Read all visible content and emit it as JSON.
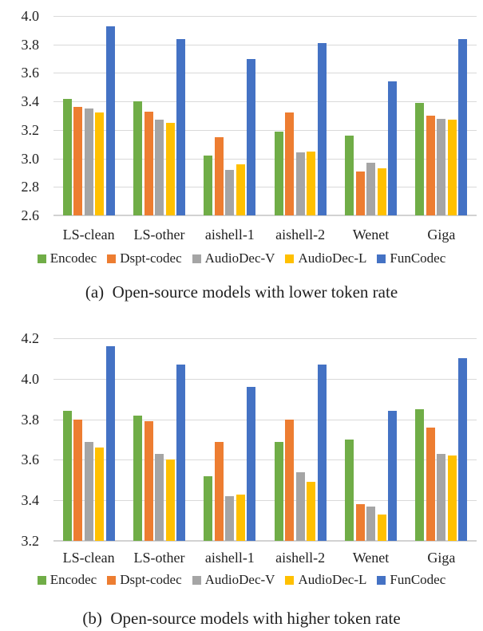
{
  "figure": {
    "caption_a": "(a)  Open-source models with lower token rate",
    "caption_b": "(b)  Open-source models with higher token rate"
  },
  "colors": {
    "encodec_green": "#70AD47",
    "dspt_orange": "#ED7D31",
    "audiodec_v_gray": "#A5A5A5",
    "audiodec_l_yellow": "#FFC000",
    "funcodec_blue": "#4472C4",
    "gridline": "#d9d9d9"
  },
  "chart_data": [
    {
      "type": "bar",
      "title": "",
      "caption": "(a)  Open-source models with lower token rate",
      "categories": [
        "LS-clean",
        "LS-other",
        "aishell-1",
        "aishell-2",
        "Wenet",
        "Giga"
      ],
      "series": [
        {
          "name": "Encodec",
          "color": "#70AD47",
          "values": [
            3.42,
            3.4,
            3.02,
            3.19,
            3.16,
            3.39
          ]
        },
        {
          "name": "Dspt-codec",
          "color": "#ED7D31",
          "values": [
            3.36,
            3.33,
            3.15,
            3.32,
            2.91,
            3.3
          ]
        },
        {
          "name": "AudioDec-V",
          "color": "#A5A5A5",
          "values": [
            3.35,
            3.27,
            2.92,
            3.04,
            2.97,
            3.28
          ]
        },
        {
          "name": "AudioDec-L",
          "color": "#FFC000",
          "values": [
            3.32,
            3.25,
            2.96,
            3.05,
            2.93,
            3.27
          ]
        },
        {
          "name": "FunCodec",
          "color": "#4472C4",
          "values": [
            3.93,
            3.84,
            3.7,
            3.81,
            3.54,
            3.84
          ]
        }
      ],
      "xlabel": "",
      "ylabel": "",
      "ylim": [
        2.6,
        4.0
      ],
      "ytick_step": 0.2,
      "yticks": [
        "4.0",
        "3.8",
        "3.6",
        "3.4",
        "3.2",
        "3.0",
        "2.8",
        "2.6"
      ],
      "grid": true,
      "legend_position": "bottom"
    },
    {
      "type": "bar",
      "title": "",
      "caption": "(b)  Open-source models with higher token rate",
      "categories": [
        "LS-clean",
        "LS-other",
        "aishell-1",
        "aishell-2",
        "Wenet",
        "Giga"
      ],
      "series": [
        {
          "name": "Encodec",
          "color": "#70AD47",
          "values": [
            3.84,
            3.82,
            3.52,
            3.69,
            3.7,
            3.85
          ]
        },
        {
          "name": "Dspt-codec",
          "color": "#ED7D31",
          "values": [
            3.8,
            3.79,
            3.69,
            3.8,
            3.38,
            3.76
          ]
        },
        {
          "name": "AudioDec-V",
          "color": "#A5A5A5",
          "values": [
            3.69,
            3.63,
            3.42,
            3.54,
            3.37,
            3.63
          ]
        },
        {
          "name": "AudioDec-L",
          "color": "#FFC000",
          "values": [
            3.66,
            3.6,
            3.43,
            3.49,
            3.33,
            3.62
          ]
        },
        {
          "name": "FunCodec",
          "color": "#4472C4",
          "values": [
            4.16,
            4.07,
            3.96,
            4.07,
            3.84,
            4.1
          ]
        }
      ],
      "xlabel": "",
      "ylabel": "",
      "ylim": [
        3.2,
        4.2
      ],
      "ytick_step": 0.2,
      "yticks": [
        "4.2",
        "4.0",
        "3.8",
        "3.6",
        "3.4",
        "3.2"
      ],
      "grid": true,
      "legend_position": "bottom"
    }
  ]
}
